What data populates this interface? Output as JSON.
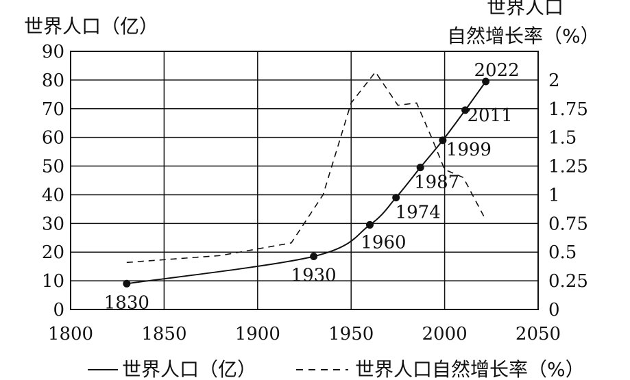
{
  "chart_data": {
    "type": "line",
    "left_axis_title": "世界人口（亿）",
    "right_axis_title_line1": "世界人口",
    "right_axis_title_line2": "自然增长率（%）",
    "x_ticks": [
      "1800",
      "1850",
      "1900",
      "1950",
      "2000",
      "2050"
    ],
    "y_left_ticks": [
      "0",
      "10",
      "20",
      "30",
      "40",
      "50",
      "60",
      "70",
      "80",
      "90"
    ],
    "y_right_ticks": [
      "0",
      "0.25",
      "0.5",
      "0.75",
      "1",
      "1.25",
      "1.5",
      "1.75",
      "2"
    ],
    "xlim": [
      1800,
      2050
    ],
    "ylim_left": [
      0,
      90
    ],
    "ylim_right": [
      0,
      2.25
    ],
    "grid": true,
    "series": [
      {
        "name": "世界人口（亿）",
        "style": "solid",
        "axis": "left",
        "points": [
          {
            "x": 1830,
            "y": 9,
            "label": "1830"
          },
          {
            "x": 1930,
            "y": 18.5,
            "label": "1930"
          },
          {
            "x": 1960,
            "y": 29.5,
            "label": "1960"
          },
          {
            "x": 1974,
            "y": 39,
            "label": "1974"
          },
          {
            "x": 1987,
            "y": 49.5,
            "label": "1987"
          },
          {
            "x": 1999,
            "y": 59,
            "label": "1999"
          },
          {
            "x": 2011,
            "y": 69.5,
            "label": "2011"
          },
          {
            "x": 2022,
            "y": 79.5,
            "label": "2022"
          }
        ]
      },
      {
        "name": "世界人口自然增长率（%）",
        "style": "dashed",
        "axis": "right",
        "points": [
          {
            "x": 1830,
            "y": 0.41
          },
          {
            "x": 1880,
            "y": 0.47
          },
          {
            "x": 1918,
            "y": 0.58
          },
          {
            "x": 1935,
            "y": 1.0
          },
          {
            "x": 1950,
            "y": 1.8
          },
          {
            "x": 1963,
            "y": 2.07
          },
          {
            "x": 1975,
            "y": 1.78
          },
          {
            "x": 1985,
            "y": 1.8
          },
          {
            "x": 1993,
            "y": 1.5
          },
          {
            "x": 2000,
            "y": 1.22
          },
          {
            "x": 2010,
            "y": 1.15
          },
          {
            "x": 2022,
            "y": 0.78
          }
        ]
      }
    ],
    "legend": {
      "placement": "bottom",
      "items": [
        {
          "label": "世界人口（亿）",
          "style": "solid"
        },
        {
          "label": "世界人口自然增长率（%）",
          "style": "dashed"
        }
      ]
    }
  }
}
